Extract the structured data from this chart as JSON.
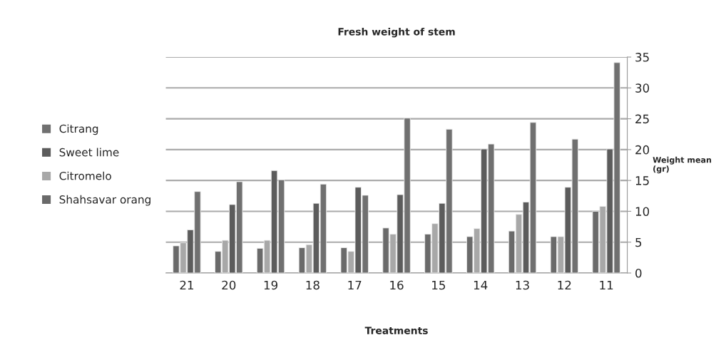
{
  "chart_data": {
    "type": "bar",
    "title": "Fresh weight of stem",
    "xlabel": "Treatments",
    "ylabel": "Weight mean\n(gr)",
    "categories": [
      "21",
      "20",
      "19",
      "18",
      "17",
      "16",
      "15",
      "14",
      "13",
      "12",
      "11"
    ],
    "series": [
      {
        "name": "Citrang",
        "color": "#707070",
        "values": [
          13.2,
          14.8,
          15.1,
          14.4,
          12.6,
          25.1,
          23.3,
          20.9,
          24.4,
          21.7,
          34.1
        ]
      },
      {
        "name": "Sweet lime",
        "color": "#5c5c5c",
        "values": [
          7.0,
          11.1,
          16.6,
          11.3,
          13.9,
          12.7,
          11.3,
          20.1,
          11.5,
          13.9,
          20.1
        ]
      },
      {
        "name": "Citromelo",
        "color": "#a8a8a8",
        "values": [
          4.9,
          5.3,
          5.3,
          4.6,
          3.5,
          6.3,
          8.0,
          7.2,
          9.5,
          5.9,
          10.8
        ]
      },
      {
        "name": "Shahsavar orang",
        "color": "#6a6a6a",
        "values": [
          4.4,
          3.5,
          4.0,
          4.1,
          4.1,
          7.3,
          6.3,
          5.9,
          6.8,
          5.9,
          10.0
        ]
      }
    ],
    "ylim": [
      0,
      35
    ],
    "yticks": [
      0,
      5,
      10,
      15,
      20,
      25,
      30,
      35
    ],
    "grid": "y",
    "legend": "left"
  }
}
